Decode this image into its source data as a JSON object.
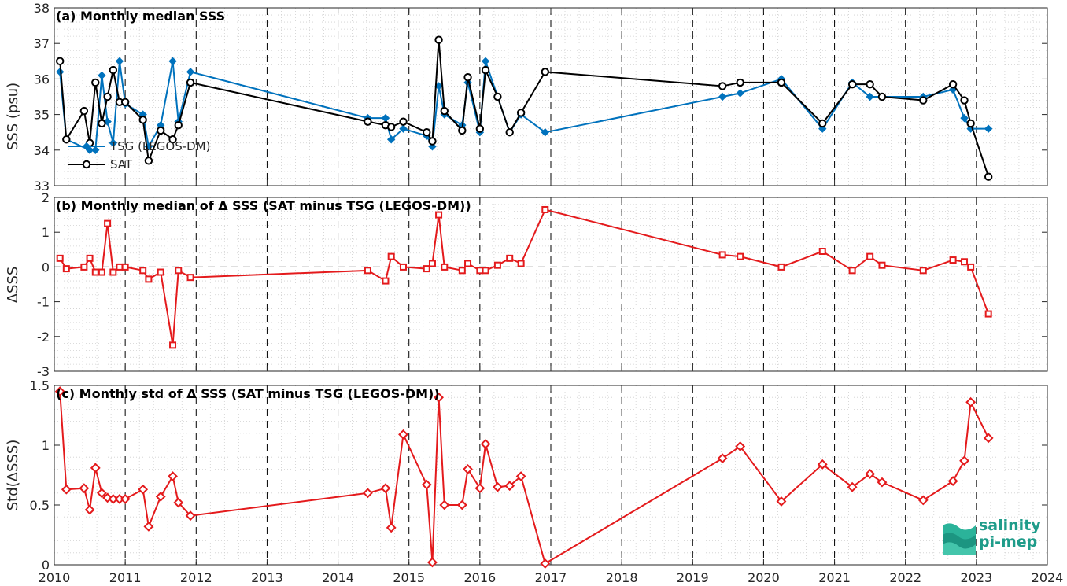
{
  "colors": {
    "tsg": "#0072BD",
    "sat": "#000000",
    "delta": "#E41A1C",
    "axis": "#262626",
    "logo": "#1f9c8a"
  },
  "logo": {
    "line1": "salinity",
    "line2": "pi-mep"
  },
  "x_axis": {
    "range": [
      2010,
      2024
    ],
    "ticks": [
      "2010",
      "2011",
      "2012",
      "2013",
      "2014",
      "2015",
      "2016",
      "2017",
      "2018",
      "2019",
      "2020",
      "2021",
      "2022",
      "2023",
      "2024"
    ]
  },
  "chart_data": [
    {
      "type": "line",
      "title": "(a) Monthly median SSS",
      "ylabel": "SSS (psu)",
      "ylim": [
        33,
        38
      ],
      "yticks": [
        "33",
        "34",
        "35",
        "36",
        "37",
        "38"
      ],
      "grid": true,
      "legend": "bottom-left",
      "series": [
        {
          "name": "TSG (LEGOS-DM)",
          "marker": "diamond",
          "x": [
            2010.08,
            2010.17,
            2010.5,
            2010.58,
            2010.67,
            2010.75,
            2010.83,
            2010.92,
            2011.0,
            2011.25,
            2011.33,
            2011.5,
            2011.67,
            2011.75,
            2011.92,
            2014.42,
            2014.67,
            2014.75,
            2014.92,
            2015.25,
            2015.33,
            2015.42,
            2015.5,
            2015.75,
            2015.83,
            2016.0,
            2016.08,
            2016.25,
            2016.42,
            2016.58,
            2016.92,
            2019.42,
            2019.67,
            2020.25,
            2020.83,
            2021.25,
            2021.5,
            2021.67,
            2022.25,
            2022.67,
            2022.83,
            2022.92,
            2023.17
          ],
          "y": [
            36.2,
            34.3,
            34.0,
            34.0,
            36.1,
            34.8,
            34.2,
            36.5,
            35.3,
            35.0,
            34.1,
            34.7,
            36.5,
            34.8,
            36.2,
            34.9,
            34.9,
            34.3,
            34.6,
            34.4,
            34.1,
            35.8,
            35.0,
            34.7,
            35.9,
            34.5,
            36.5,
            35.5,
            34.5,
            35.0,
            34.5,
            35.5,
            35.6,
            36.0,
            34.6,
            35.9,
            35.5,
            35.5,
            35.5,
            35.7,
            34.9,
            34.6,
            34.6
          ]
        },
        {
          "name": "SAT",
          "marker": "circle",
          "x": [
            2010.08,
            2010.17,
            2010.42,
            2010.5,
            2010.58,
            2010.67,
            2010.75,
            2010.83,
            2010.92,
            2011.0,
            2011.25,
            2011.33,
            2011.5,
            2011.67,
            2011.75,
            2011.92,
            2014.42,
            2014.67,
            2014.75,
            2014.92,
            2015.25,
            2015.33,
            2015.42,
            2015.5,
            2015.75,
            2015.83,
            2016.0,
            2016.08,
            2016.25,
            2016.42,
            2016.58,
            2016.92,
            2019.42,
            2019.67,
            2020.25,
            2020.83,
            2021.25,
            2021.5,
            2021.67,
            2022.25,
            2022.67,
            2022.83,
            2022.92,
            2023.17
          ],
          "y": [
            36.5,
            34.3,
            35.1,
            34.2,
            35.9,
            34.75,
            35.5,
            36.25,
            35.35,
            35.35,
            34.85,
            33.7,
            34.55,
            34.3,
            34.7,
            35.9,
            34.8,
            34.7,
            34.65,
            34.8,
            34.5,
            34.25,
            37.1,
            35.1,
            34.55,
            36.05,
            34.6,
            36.25,
            35.5,
            34.5,
            35.05,
            36.2,
            35.8,
            35.9,
            35.9,
            34.75,
            35.85,
            35.85,
            35.5,
            35.4,
            35.85,
            35.4,
            34.75,
            33.25
          ]
        }
      ]
    },
    {
      "type": "line",
      "title": "(b) Monthly median of Δ SSS (SAT minus TSG (LEGOS-DM))",
      "ylabel": "ΔSSS",
      "ylim": [
        -3,
        2
      ],
      "yticks": [
        "-3",
        "-2",
        "-1",
        "0",
        "1",
        "2"
      ],
      "zero_line": true,
      "grid": true,
      "series": [
        {
          "name": "",
          "marker": "square",
          "x": [
            2010.08,
            2010.17,
            2010.42,
            2010.5,
            2010.58,
            2010.67,
            2010.75,
            2010.83,
            2010.92,
            2011.0,
            2011.25,
            2011.33,
            2011.5,
            2011.67,
            2011.75,
            2011.92,
            2014.42,
            2014.67,
            2014.75,
            2014.92,
            2015.25,
            2015.33,
            2015.42,
            2015.5,
            2015.75,
            2015.83,
            2016.0,
            2016.08,
            2016.25,
            2016.42,
            2016.58,
            2016.92,
            2019.42,
            2019.67,
            2020.25,
            2020.83,
            2021.25,
            2021.5,
            2021.67,
            2022.25,
            2022.67,
            2022.83,
            2022.92,
            2023.17
          ],
          "y": [
            0.25,
            -0.05,
            0.0,
            0.25,
            -0.15,
            -0.15,
            1.25,
            -0.15,
            0.0,
            0.0,
            -0.1,
            -0.35,
            -0.15,
            -2.25,
            -0.1,
            -0.3,
            -0.1,
            -0.4,
            0.3,
            0.0,
            -0.05,
            0.1,
            1.5,
            0.0,
            -0.1,
            0.1,
            -0.1,
            -0.1,
            0.05,
            0.25,
            0.1,
            1.65,
            0.35,
            0.3,
            0.0,
            0.45,
            -0.1,
            0.3,
            0.05,
            -0.1,
            0.2,
            0.15,
            0.0,
            -1.35
          ]
        }
      ]
    },
    {
      "type": "line",
      "title": "(c) Monthly std of Δ SSS (SAT minus TSG (LEGOS-DM))",
      "ylabel": "Std(ΔSSS)",
      "ylim": [
        0,
        1.5
      ],
      "yticks": [
        "0",
        "0.5",
        "1",
        "1.5"
      ],
      "grid": true,
      "series": [
        {
          "name": "",
          "marker": "diamond",
          "x": [
            2010.08,
            2010.17,
            2010.42,
            2010.5,
            2010.58,
            2010.67,
            2010.75,
            2010.83,
            2010.92,
            2011.0,
            2011.25,
            2011.33,
            2011.5,
            2011.67,
            2011.75,
            2011.92,
            2014.42,
            2014.67,
            2014.75,
            2014.92,
            2015.25,
            2015.33,
            2015.42,
            2015.5,
            2015.75,
            2015.83,
            2016.0,
            2016.08,
            2016.25,
            2016.42,
            2016.58,
            2016.92,
            2019.42,
            2019.67,
            2020.25,
            2020.83,
            2021.25,
            2021.5,
            2021.67,
            2022.25,
            2022.67,
            2022.83,
            2022.92,
            2023.17
          ],
          "y": [
            1.45,
            0.63,
            0.64,
            0.46,
            0.81,
            0.6,
            0.56,
            0.55,
            0.55,
            0.55,
            0.63,
            0.32,
            0.57,
            0.74,
            0.52,
            0.41,
            0.6,
            0.64,
            0.31,
            1.09,
            0.67,
            0.02,
            1.4,
            0.5,
            0.5,
            0.8,
            0.64,
            1.01,
            0.65,
            0.66,
            0.74,
            0.01,
            0.89,
            0.99,
            0.53,
            0.84,
            0.65,
            0.76,
            0.69,
            0.54,
            0.7,
            0.87,
            1.36,
            1.06
          ]
        }
      ]
    }
  ]
}
